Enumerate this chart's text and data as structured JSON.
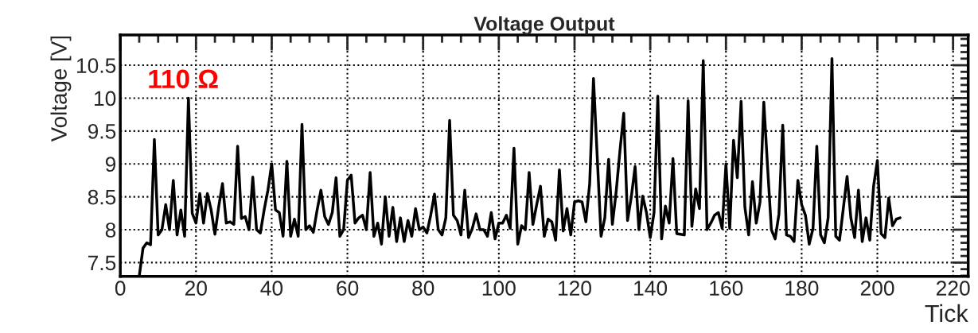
{
  "chart_data": {
    "type": "line",
    "title": "Voltage Output",
    "xlabel": "Tick",
    "ylabel": "Voltage [V]",
    "annotations": [
      "110 Ω"
    ],
    "x": [
      5,
      6,
      7,
      8,
      9,
      10,
      11,
      12,
      13,
      14,
      15,
      16,
      17,
      18,
      19,
      20,
      21,
      22,
      23,
      24,
      25,
      26,
      27,
      28,
      29,
      30,
      31,
      32,
      33,
      34,
      35,
      36,
      37,
      38,
      39,
      40,
      41,
      42,
      43,
      44,
      45,
      46,
      47,
      48,
      49,
      50,
      51,
      52,
      53,
      54,
      55,
      56,
      57,
      58,
      59,
      60,
      61,
      62,
      63,
      64,
      65,
      66,
      67,
      68,
      69,
      70,
      71,
      72,
      73,
      74,
      75,
      76,
      77,
      78,
      79,
      80,
      81,
      82,
      83,
      84,
      85,
      86,
      87,
      88,
      89,
      90,
      91,
      92,
      93,
      94,
      95,
      96,
      97,
      98,
      99,
      100,
      101,
      102,
      103,
      104,
      105,
      106,
      107,
      108,
      109,
      110,
      111,
      112,
      113,
      114,
      115,
      116,
      117,
      118,
      119,
      120,
      121,
      122,
      123,
      124,
      125,
      126,
      127,
      128,
      129,
      130,
      131,
      132,
      133,
      134,
      135,
      136,
      137,
      138,
      139,
      140,
      141,
      142,
      143,
      144,
      145,
      146,
      147,
      148,
      149,
      150,
      151,
      152,
      153,
      154,
      155,
      156,
      157,
      158,
      159,
      160,
      161,
      162,
      163,
      164,
      165,
      166,
      167,
      168,
      169,
      170,
      171,
      172,
      173,
      174,
      175,
      176,
      177,
      178,
      179,
      180,
      181,
      182,
      183,
      184,
      185,
      186,
      187,
      188,
      189,
      190,
      191,
      192,
      193,
      194,
      195,
      196,
      197,
      198,
      199,
      200,
      201,
      202,
      203,
      204,
      205,
      206
    ],
    "series": [
      {
        "color": "#000000",
        "values": [
          7.29,
          7.72,
          7.8,
          7.77,
          9.37,
          7.92,
          8.0,
          8.38,
          8.0,
          8.75,
          7.92,
          8.3,
          7.9,
          10.0,
          8.25,
          8.1,
          8.55,
          8.1,
          8.55,
          8.3,
          7.93,
          8.35,
          8.7,
          8.1,
          8.12,
          8.08,
          9.27,
          8.17,
          8.2,
          8.0,
          8.8,
          8.0,
          7.95,
          8.3,
          8.6,
          9.0,
          8.3,
          8.26,
          7.9,
          9.04,
          7.9,
          8.16,
          7.9,
          9.6,
          8.0,
          8.06,
          7.96,
          8.3,
          8.6,
          8.2,
          8.08,
          8.26,
          8.79,
          7.9,
          8.0,
          8.75,
          8.83,
          8.1,
          8.18,
          8.22,
          8.0,
          8.87,
          7.9,
          8.1,
          7.78,
          8.5,
          7.9,
          8.34,
          7.82,
          8.18,
          7.82,
          8.14,
          7.9,
          8.32,
          8.0,
          8.04,
          7.95,
          8.22,
          8.54,
          8.0,
          7.92,
          8.18,
          9.66,
          8.22,
          8.14,
          7.92,
          8.6,
          7.88,
          8.02,
          8.24,
          8.0,
          8.0,
          7.9,
          8.26,
          7.86,
          8.1,
          8.1,
          8.22,
          8.02,
          9.24,
          7.78,
          8.06,
          8.0,
          8.87,
          8.08,
          8.38,
          8.66,
          7.9,
          8.16,
          8.12,
          7.84,
          8.91,
          7.98,
          8.32,
          7.92,
          8.42,
          8.44,
          8.42,
          8.12,
          8.7,
          10.3,
          9.1,
          7.9,
          8.18,
          9.07,
          8.08,
          8.58,
          9.2,
          9.77,
          8.14,
          8.5,
          8.96,
          8.0,
          8.51,
          8.26,
          7.88,
          8.26,
          10.03,
          7.86,
          8.36,
          8.1,
          9.08,
          7.94,
          7.93,
          7.92,
          9.96,
          8.05,
          8.62,
          8.32,
          10.57,
          8.0,
          8.1,
          8.22,
          8.26,
          8.02,
          9.0,
          8.02,
          9.36,
          8.79,
          9.95,
          8.34,
          7.92,
          8.73,
          8.1,
          8.42,
          9.94,
          8.95,
          8.0,
          7.86,
          8.24,
          9.59,
          7.92,
          7.9,
          7.82,
          8.75,
          8.38,
          8.22,
          7.78,
          8.02,
          9.27,
          7.92,
          7.8,
          8.18,
          10.6,
          7.9,
          7.84,
          8.32,
          8.81,
          8.18,
          7.88,
          8.6,
          7.82,
          8.18,
          7.84,
          8.66,
          9.05,
          7.94,
          7.88,
          8.48,
          8.06,
          8.16,
          8.18
        ]
      }
    ],
    "xlim": [
      0,
      224
    ],
    "ylim": [
      7.29,
      10.96
    ],
    "xticks": [
      0,
      20,
      40,
      60,
      80,
      100,
      120,
      140,
      160,
      180,
      200,
      220
    ],
    "yticks": [
      7.5,
      8,
      8.5,
      9,
      9.5,
      10,
      10.5
    ],
    "grid": true,
    "legend": false,
    "line_style": "solid",
    "marker": "none"
  }
}
